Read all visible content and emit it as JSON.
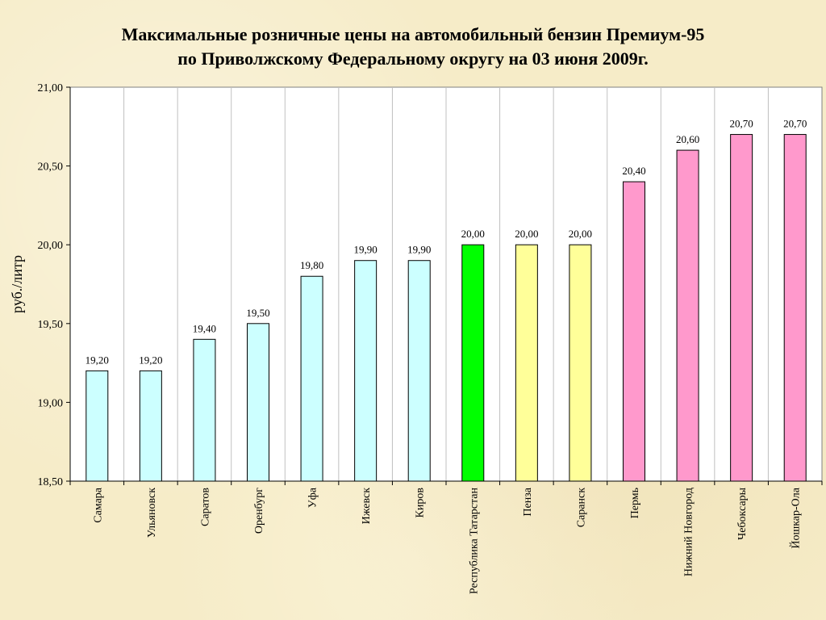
{
  "chart_data": {
    "type": "bar",
    "title_line1": "Максимальные розничные цены на автомобильный бензин Премиум-95",
    "title_line2": "по Приволжскому Федеральному округу на 03 июня 2009г.",
    "ylabel": "руб./литр",
    "xlabel": "",
    "ylim": [
      18.5,
      21.0
    ],
    "yticks": [
      "18,50",
      "19,00",
      "19,50",
      "20,00",
      "20,50",
      "21,00"
    ],
    "ytick_values": [
      18.5,
      19.0,
      19.5,
      20.0,
      20.5,
      21.0
    ],
    "grid": "vertical lines between categories",
    "legend": "none",
    "categories": [
      "Самара",
      "Ульяновск",
      "Саратов",
      "Оренбург",
      "Уфа",
      "Ижевск",
      "Киров",
      "Республика Татарстан",
      "Пенза",
      "Саранск",
      "Пермь",
      "Нижний Новгород",
      "Чебоксары",
      "Йошкар-Ола"
    ],
    "values": [
      19.2,
      19.2,
      19.4,
      19.5,
      19.8,
      19.9,
      19.9,
      20.0,
      20.0,
      20.0,
      20.4,
      20.6,
      20.7,
      20.7
    ],
    "value_labels": [
      "19,20",
      "19,20",
      "19,40",
      "19,50",
      "19,80",
      "19,90",
      "19,90",
      "20,00",
      "20,00",
      "20,00",
      "20,40",
      "20,60",
      "20,70",
      "20,70"
    ],
    "bar_colors": [
      "#ccffff",
      "#ccffff",
      "#ccffff",
      "#ccffff",
      "#ccffff",
      "#ccffff",
      "#ccffff",
      "#00ff00",
      "#ffff99",
      "#ffff99",
      "#ff99cc",
      "#ff99cc",
      "#ff99cc",
      "#ff99cc"
    ],
    "bar_edge_color": "#000000",
    "plot_background": "#ffffff"
  }
}
